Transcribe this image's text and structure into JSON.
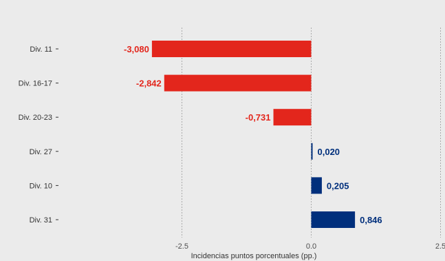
{
  "chart_data": {
    "type": "bar",
    "orientation": "horizontal",
    "categories": [
      "Div. 11",
      "Div. 16-17",
      "Div. 20-23",
      "Div. 27",
      "Div. 10",
      "Div. 31"
    ],
    "values": [
      -3.08,
      -2.842,
      -0.731,
      0.02,
      0.205,
      0.846
    ],
    "value_labels": [
      "-3,080",
      "-2,842",
      "-0,731",
      "0,020",
      "0,205",
      "0,846"
    ],
    "x_ticks": [
      -2.5,
      0.0,
      2.5
    ],
    "x_tick_labels": [
      "-2.5",
      "0.0",
      "2.5"
    ],
    "xlabel": "Incidencias puntos porcentuales (pp.)",
    "ylabel": "",
    "title": "",
    "grid": "vertical dashed at ticks",
    "legend": "none",
    "colors": {
      "negative": "#e3261c",
      "positive": "#002f7c",
      "background": "#ebebeb",
      "grid": "#9a9a9a"
    }
  }
}
